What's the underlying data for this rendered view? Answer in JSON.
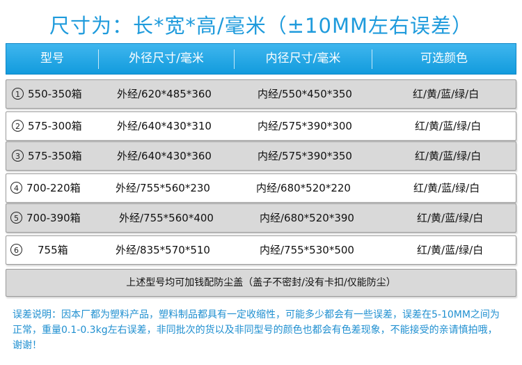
{
  "title": "尺寸为：长*宽*高/毫米（±10MM左右误差）",
  "headers": [
    "型号",
    "外径尺寸/毫米",
    "内径尺寸/毫米",
    "可选颜色"
  ],
  "rows": [
    {
      "num": "1",
      "model": "550-350箱",
      "outer": "外经/620*485*360",
      "inner": "内经/550*450*350",
      "colors": "红/黄/蓝/绿/白"
    },
    {
      "num": "2",
      "model": "575-300箱",
      "outer": "外经/640*430*310",
      "inner": "内经/575*390*300",
      "colors": "红/黄/蓝/绿/白"
    },
    {
      "num": "3",
      "model": "575-350箱",
      "outer": "外经/640*430*360",
      "inner": "内经/575*390*350",
      "colors": "红/黄/蓝/绿/白"
    },
    {
      "num": "4",
      "model": "700-220箱",
      "outer": "外经/755*560*230",
      "inner": "内经/680*520*220",
      "colors": "红/黄/蓝/绿/白"
    },
    {
      "num": "5",
      "model": "700-390箱",
      "outer": "外经/755*560*400",
      "inner": "内经/680*520*390",
      "colors": "红/黄/蓝/绿/白"
    },
    {
      "num": "6",
      "model": "755箱",
      "outer": "外经/835*570*510",
      "inner": "内经/755*530*500",
      "colors": "红/黄/蓝/绿/白"
    }
  ],
  "dust_cover_note": "上述型号均可加钱配防尘盖（盖子不密封/没有卡扣/仅能防尘）",
  "error_note": "误差说明：因本厂都为塑料产品，塑料制品都具有一定收缩性，可能多少都会有一些误差，误差在5-10MM之间为正常，重量0.1-0.3kg左右误差，非同批次的货以及非同型号的颜色也都会有色差现象，不能接受的亲请慎拍哦，谢谢！",
  "colors": {
    "accent": "#1f9bdc",
    "header_bg": "#129bdd",
    "row_grey": "#d9d9d9"
  }
}
